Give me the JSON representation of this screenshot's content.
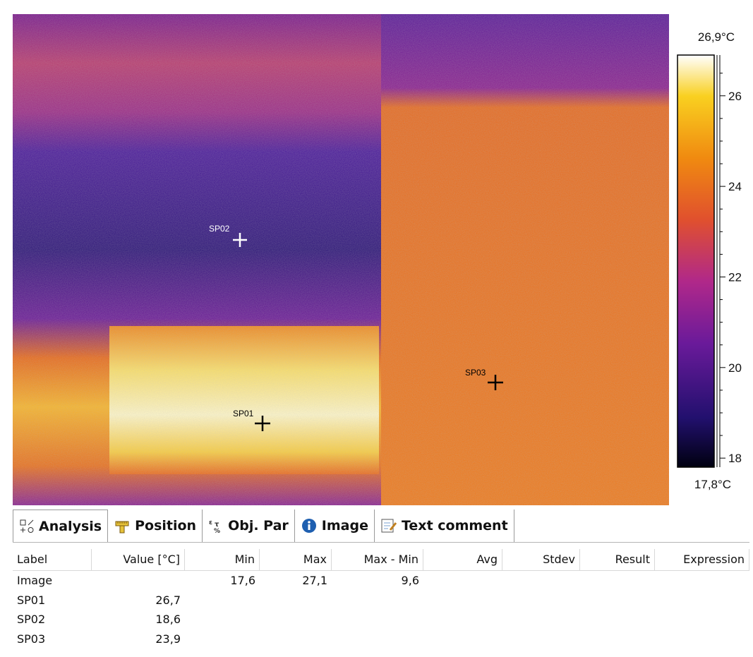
{
  "image": {
    "spots": [
      {
        "label": "SP01"
      },
      {
        "label": "SP02"
      },
      {
        "label": "SP03"
      }
    ]
  },
  "scale": {
    "max": {
      "value": 26.9,
      "label": "26,9°C"
    },
    "min": {
      "value": 17.8,
      "label": "17,8°C"
    },
    "ticks": [
      26,
      24,
      22,
      20,
      18
    ]
  },
  "tabs": [
    "Analysis",
    "Position",
    "Obj. Par",
    "Image",
    "Text comment"
  ],
  "table": {
    "columns": [
      "Label",
      "Value [°C]",
      "Min",
      "Max",
      "Max - Min",
      "Avg",
      "Stdev",
      "Result",
      "Expression"
    ],
    "rows": [
      {
        "label": "Image",
        "min": "17,6",
        "max": "27,1",
        "max_minus_min": "9,6"
      },
      {
        "label": "SP01",
        "value": "26,7"
      },
      {
        "label": "SP02",
        "value": "18,6"
      },
      {
        "label": "SP03",
        "value": "23,9"
      }
    ]
  }
}
